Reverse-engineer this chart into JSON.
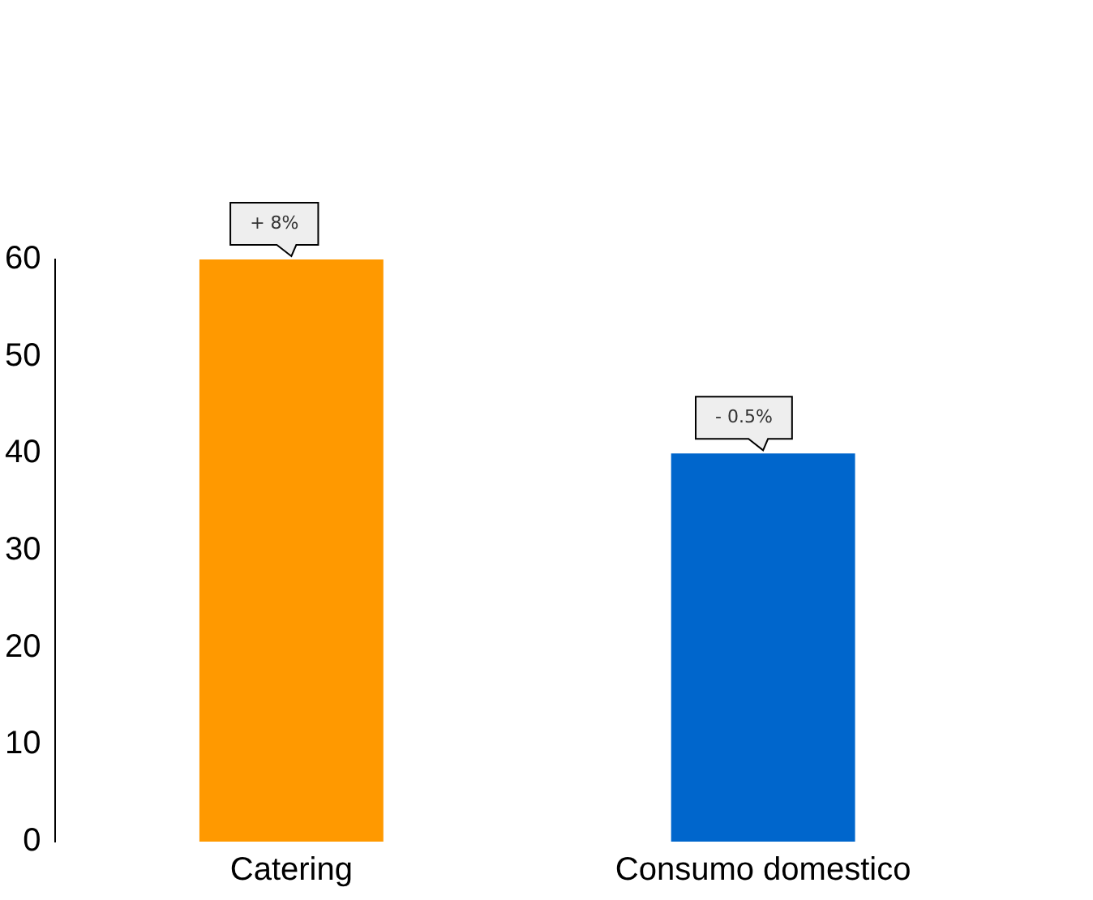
{
  "chart_data": {
    "type": "bar",
    "categories": [
      "Catering",
      "Consumo domestico"
    ],
    "values": [
      60,
      40
    ],
    "colors": [
      "#ff9900",
      "#0066cc"
    ],
    "ylim": [
      0,
      60
    ],
    "yticks": [
      0,
      10,
      20,
      30,
      40,
      50,
      60
    ],
    "grid": false,
    "legend": false,
    "annotations": [
      {
        "text": "+ 8%",
        "x": "Catering",
        "y": 60
      },
      {
        "text": "- 0.5%",
        "x": "Consumo domestico",
        "y": 40
      }
    ]
  }
}
